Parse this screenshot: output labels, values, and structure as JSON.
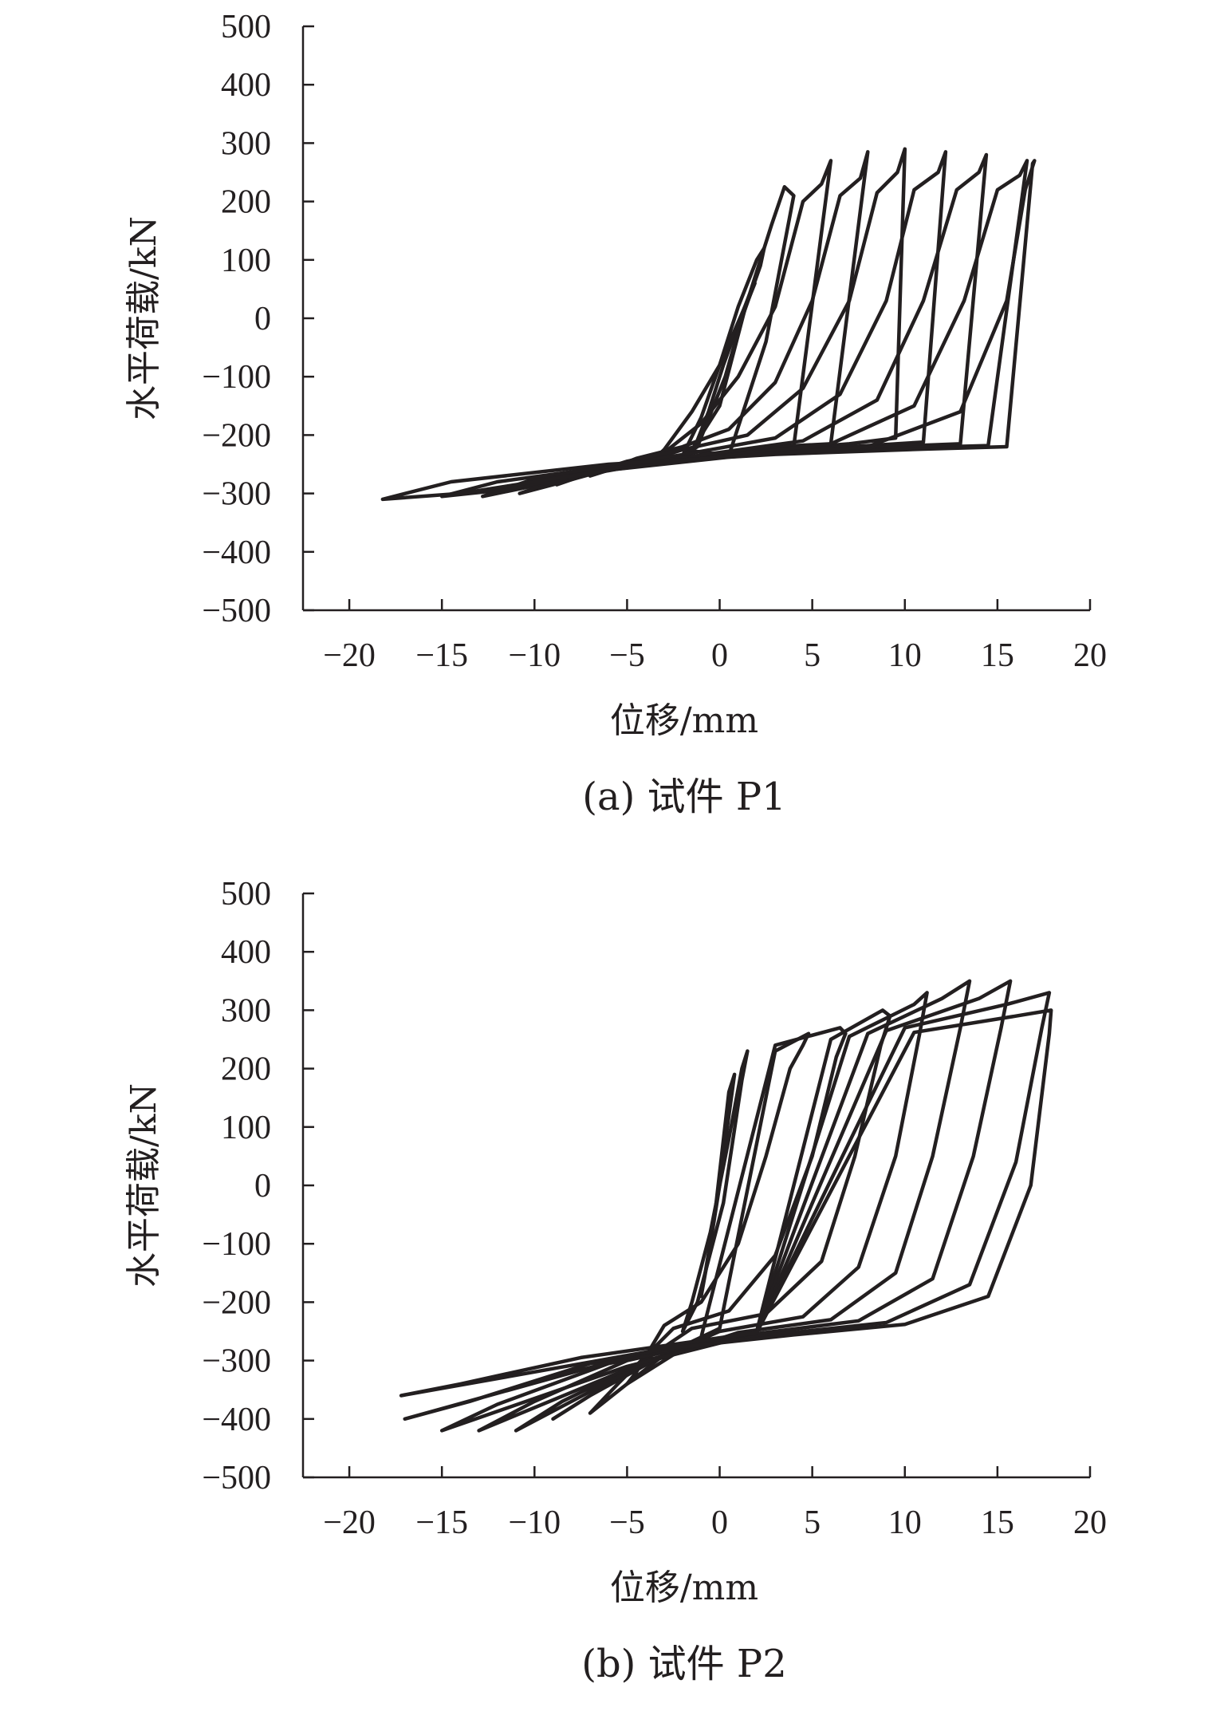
{
  "chart_data": [
    {
      "type": "line",
      "title": "",
      "caption": "(a) 试件 P1",
      "xlabel": "位移/mm",
      "ylabel": "水平荷载/kN",
      "xlim": [
        -22.5,
        20
      ],
      "ylim": [
        -500,
        500
      ],
      "xticks": [
        -20,
        -15,
        -10,
        -5,
        0,
        5,
        10,
        15,
        20
      ],
      "xtick_labels": [
        "−20",
        "−15",
        "−10",
        "−5",
        "0",
        "5",
        "10",
        "15",
        "20"
      ],
      "yticks": [
        500,
        400,
        300,
        200,
        100,
        0,
        -100,
        -200,
        -300,
        -400,
        -500
      ],
      "ytick_labels": [
        "500",
        "400",
        "300",
        "200",
        "100",
        "0",
        "−100",
        "−200",
        "−300",
        "−400",
        "−500"
      ],
      "grid": false,
      "legend": "none",
      "series": [
        {
          "loop": 1,
          "x": [
            -1.6,
            0,
            1.4,
            1.9,
            1.6,
            1.0,
            0.2,
            -0.6,
            -1.4,
            -1.6
          ],
          "y": [
            -230,
            -150,
            20,
            60,
            40,
            -10,
            -80,
            -160,
            -225,
            -230
          ]
        },
        {
          "loop": 2,
          "x": [
            -2.0,
            -1.2,
            0.3,
            1.2,
            2.2,
            2.4,
            2.0,
            1.0,
            0.0,
            -1.0,
            -2.0
          ],
          "y": [
            -235,
            -220,
            -100,
            0,
            90,
            120,
            100,
            20,
            -80,
            -170,
            -235
          ]
        },
        {
          "loop": 3,
          "x": [
            -3.5,
            -2.0,
            0.5,
            2.5,
            4.0,
            3.5,
            2.8,
            1.5,
            0.0,
            -1.5,
            -3.0,
            -3.5
          ],
          "y": [
            -240,
            -225,
            -235,
            -40,
            210,
            225,
            160,
            30,
            -80,
            -160,
            -225,
            -240
          ]
        },
        {
          "loop": 4,
          "x": [
            -5.2,
            -3.0,
            0.5,
            4.0,
            6.0,
            5.5,
            4.5,
            3.0,
            1.0,
            -1.0,
            -3.0,
            -4.8,
            -5.2
          ],
          "y": [
            -255,
            -240,
            -235,
            -220,
            270,
            230,
            200,
            20,
            -100,
            -180,
            -230,
            -250,
            -255
          ]
        },
        {
          "loop": 5,
          "x": [
            -7.0,
            -5.0,
            -1.0,
            3.0,
            6.0,
            8.0,
            7.6,
            6.5,
            5.0,
            3.0,
            0.5,
            -2.0,
            -4.5,
            -6.5,
            -7.0
          ],
          "y": [
            -270,
            -250,
            -235,
            -220,
            -215,
            285,
            240,
            210,
            30,
            -110,
            -190,
            -220,
            -240,
            -265,
            -270
          ]
        },
        {
          "loop": 6,
          "x": [
            -8.8,
            -6.5,
            -2.0,
            3.0,
            7.0,
            9.5,
            10.0,
            9.6,
            8.5,
            7.0,
            4.5,
            1.5,
            -2.0,
            -5.0,
            -8.0,
            -8.8
          ],
          "y": [
            -285,
            -260,
            -240,
            -225,
            -215,
            -205,
            290,
            250,
            215,
            30,
            -120,
            -200,
            -225,
            -245,
            -275,
            -285
          ]
        },
        {
          "loop": 7,
          "x": [
            -10.8,
            -8.0,
            -3.0,
            3.0,
            8.0,
            11.0,
            12.2,
            11.8,
            10.5,
            9.0,
            6.5,
            3.0,
            -1.0,
            -5.0,
            -9.0,
            -10.8
          ],
          "y": [
            -300,
            -270,
            -245,
            -228,
            -218,
            -212,
            285,
            250,
            220,
            30,
            -130,
            -205,
            -228,
            -250,
            -285,
            -300
          ]
        },
        {
          "loop": 8,
          "x": [
            -12.8,
            -10.0,
            -4.0,
            3.0,
            9.0,
            13.0,
            14.4,
            14.0,
            12.8,
            11.0,
            8.5,
            4.5,
            -0.5,
            -5.5,
            -10.5,
            -12.8
          ],
          "y": [
            -305,
            -275,
            -248,
            -230,
            -220,
            -215,
            280,
            250,
            220,
            30,
            -140,
            -210,
            -232,
            -255,
            -290,
            -305
          ]
        },
        {
          "loop": 9,
          "x": [
            -15.0,
            -12.0,
            -5.0,
            3.0,
            10.0,
            14.5,
            16.6,
            16.2,
            15.0,
            13.2,
            10.5,
            6.0,
            0.5,
            -5.5,
            -12.0,
            -15.0
          ],
          "y": [
            -305,
            -280,
            -250,
            -232,
            -222,
            -218,
            270,
            245,
            220,
            30,
            -150,
            -215,
            -235,
            -258,
            -295,
            -305
          ]
        },
        {
          "loop": 10,
          "x": [
            -18.2,
            -14.5,
            -6.0,
            3.0,
            11.0,
            15.5,
            16.9,
            17.0,
            16.5,
            15.5,
            13.0,
            8.0,
            1.0,
            -6.0,
            -14.0,
            -18.2
          ],
          "y": [
            -310,
            -280,
            -250,
            -233,
            -224,
            -220,
            265,
            270,
            220,
            30,
            -160,
            -220,
            -236,
            -260,
            -300,
            -310
          ]
        }
      ]
    },
    {
      "type": "line",
      "title": "",
      "caption": "(b) 试件 P2",
      "xlabel": "位移/mm",
      "ylabel": "水平荷载/kN",
      "xlim": [
        -22.5,
        20
      ],
      "ylim": [
        -500,
        500
      ],
      "xticks": [
        -20,
        -15,
        -10,
        -5,
        0,
        5,
        10,
        15,
        20
      ],
      "xtick_labels": [
        "−20",
        "−15",
        "−10",
        "−5",
        "0",
        "5",
        "10",
        "15",
        "20"
      ],
      "yticks": [
        500,
        400,
        300,
        200,
        100,
        0,
        -100,
        -200,
        -300,
        -400,
        -500
      ],
      "ytick_labels": [
        "500",
        "400",
        "300",
        "200",
        "100",
        "0",
        "−100",
        "−200",
        "−300",
        "−400",
        "−500"
      ],
      "grid": false,
      "legend": "none",
      "series": [
        {
          "loop": 1,
          "x": [
            -1.0,
            -0.3,
            0.5,
            0.8,
            0.5,
            0.0,
            -0.6,
            -1.0
          ],
          "y": [
            -190,
            -60,
            160,
            190,
            120,
            0,
            -120,
            -190
          ]
        },
        {
          "loop": 2,
          "x": [
            -2.0,
            -1.2,
            0.2,
            1.2,
            1.5,
            1.2,
            0.5,
            -0.5,
            -1.5,
            -2.0
          ],
          "y": [
            -250,
            -200,
            -30,
            180,
            230,
            200,
            80,
            -80,
            -200,
            -250
          ]
        },
        {
          "loop": 3,
          "x": [
            -5.0,
            -3.0,
            0.0,
            3.0,
            4.8,
            4.5,
            3.8,
            2.5,
            1.0,
            -1.0,
            -3.0,
            -4.5,
            -5.0
          ],
          "y": [
            -340,
            -290,
            -245,
            230,
            260,
            240,
            200,
            50,
            -100,
            -200,
            -240,
            -320,
            -340
          ]
        },
        {
          "loop": 4,
          "x": [
            -7.0,
            -5.0,
            -1.0,
            3.0,
            6.5,
            6.8,
            6.3,
            5.0,
            3.0,
            0.5,
            -2.5,
            -5.5,
            -7.0
          ],
          "y": [
            -390,
            -340,
            -260,
            240,
            270,
            260,
            220,
            50,
            -120,
            -215,
            -245,
            -340,
            -390
          ]
        },
        {
          "loop": 5,
          "x": [
            -9.0,
            -7.0,
            -3.0,
            2.0,
            6.0,
            8.8,
            9.2,
            8.7,
            7.3,
            5.5,
            2.5,
            -1.5,
            -5.5,
            -9.0
          ],
          "y": [
            -400,
            -360,
            -290,
            -250,
            250,
            300,
            290,
            240,
            50,
            -130,
            -220,
            -245,
            -330,
            -400
          ]
        },
        {
          "loop": 6,
          "x": [
            -11.0,
            -8.5,
            -4.0,
            2.0,
            7.0,
            10.5,
            11.2,
            10.8,
            9.5,
            7.5,
            4.5,
            0.0,
            -5.0,
            -11.0
          ],
          "y": [
            -420,
            -370,
            -300,
            -250,
            255,
            310,
            330,
            260,
            50,
            -140,
            -225,
            -250,
            -320,
            -420
          ]
        },
        {
          "loop": 7,
          "x": [
            -13.0,
            -10.0,
            -5.0,
            2.0,
            8.0,
            12.0,
            13.5,
            13.0,
            11.5,
            9.5,
            6.0,
            1.0,
            -5.0,
            -13.0
          ],
          "y": [
            -420,
            -370,
            -300,
            -250,
            260,
            320,
            350,
            270,
            50,
            -150,
            -230,
            -252,
            -315,
            -420
          ]
        },
        {
          "loop": 8,
          "x": [
            -15.0,
            -12.0,
            -6.0,
            2.0,
            9.0,
            14.0,
            15.7,
            15.2,
            13.7,
            11.5,
            7.5,
            2.0,
            -5.0,
            -15.0
          ],
          "y": [
            -420,
            -375,
            -305,
            -252,
            265,
            320,
            350,
            270,
            50,
            -160,
            -232,
            -254,
            -310,
            -420
          ]
        },
        {
          "loop": 9,
          "x": [
            -17.0,
            -13.5,
            -7.0,
            2.0,
            10.0,
            15.5,
            17.8,
            17.4,
            16.0,
            13.5,
            9.0,
            3.0,
            -4.5,
            -17.0
          ],
          "y": [
            -400,
            -370,
            -305,
            -252,
            270,
            310,
            330,
            270,
            40,
            -170,
            -235,
            -255,
            -290,
            -400
          ]
        },
        {
          "loop": 10,
          "x": [
            -17.2,
            -14.0,
            -7.5,
            2.0,
            10.5,
            16.0,
            17.9,
            17.8,
            16.8,
            14.5,
            10.0,
            4.0,
            -3.0,
            -17.2
          ],
          "y": [
            -360,
            -340,
            -295,
            -252,
            262,
            290,
            300,
            260,
            0,
            -190,
            -238,
            -256,
            -280,
            -360
          ]
        }
      ]
    }
  ]
}
